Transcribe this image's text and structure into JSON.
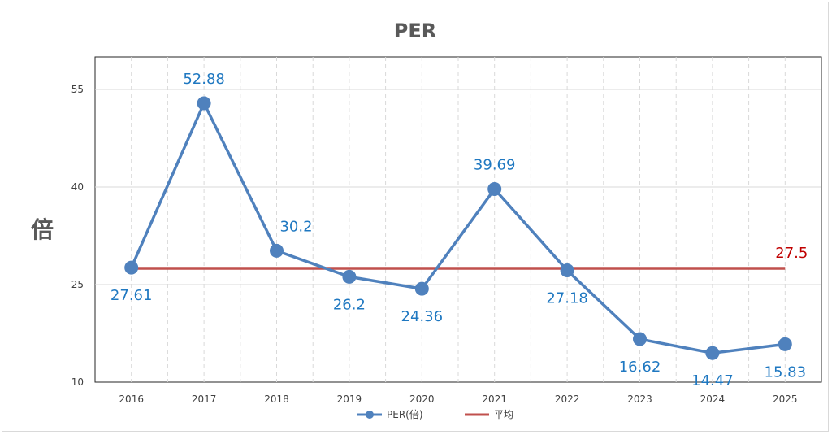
{
  "chart_data": {
    "type": "line",
    "title": "PER",
    "ylabel": "倍",
    "xlabel": "",
    "ylim": [
      10,
      60
    ],
    "yticks": [
      10,
      25,
      40,
      55
    ],
    "categories": [
      "2016",
      "2017",
      "2018",
      "2019",
      "2020",
      "2021",
      "2022",
      "2023",
      "2024",
      "2025"
    ],
    "series": [
      {
        "name": "PER(倍)",
        "values": [
          27.61,
          52.88,
          30.2,
          26.2,
          24.36,
          39.69,
          27.18,
          16.62,
          14.47,
          15.83
        ],
        "labels": [
          "27.61",
          "52.88",
          "30.2",
          "26.2",
          "24.36",
          "39.69",
          "27.18",
          "16.62",
          "14.47",
          "15.83"
        ],
        "color": "#4f81bd",
        "marker": "circle"
      },
      {
        "name": "平均",
        "values": [
          27.5,
          27.5,
          27.5,
          27.5,
          27.5,
          27.5,
          27.5,
          27.5,
          27.5,
          27.5
        ],
        "label": "27.5",
        "color": "#c0504d"
      }
    ],
    "grid": {
      "vertical": true,
      "horizontal": true,
      "style": "dashed"
    },
    "legend_position": "bottom"
  }
}
